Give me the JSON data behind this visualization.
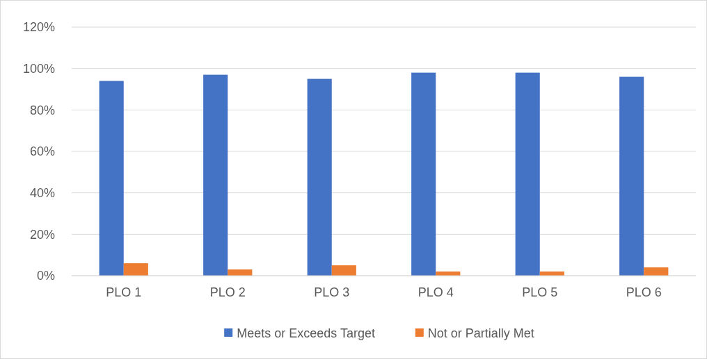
{
  "chart_data": {
    "type": "bar",
    "categories": [
      "PLO 1",
      "PLO 2",
      "PLO 3",
      "PLO 4",
      "PLO 5",
      "PLO 6"
    ],
    "series": [
      {
        "name": "Meets or Exceeds Target",
        "color": "#4472c4",
        "values": [
          94,
          97,
          95,
          98,
          98,
          96
        ]
      },
      {
        "name": "Not or Partially Met",
        "color": "#ed7d31",
        "values": [
          6,
          3,
          5,
          2,
          2,
          4
        ]
      }
    ],
    "ylim": [
      0,
      120
    ],
    "yticks": [
      {
        "value": 0,
        "label": "0%"
      },
      {
        "value": 20,
        "label": "20%"
      },
      {
        "value": 40,
        "label": "40%"
      },
      {
        "value": 60,
        "label": "60%"
      },
      {
        "value": 80,
        "label": "80%"
      },
      {
        "value": 100,
        "label": "100%"
      },
      {
        "value": 120,
        "label": "120%"
      }
    ],
    "grid": "y",
    "legend": "bottom"
  }
}
